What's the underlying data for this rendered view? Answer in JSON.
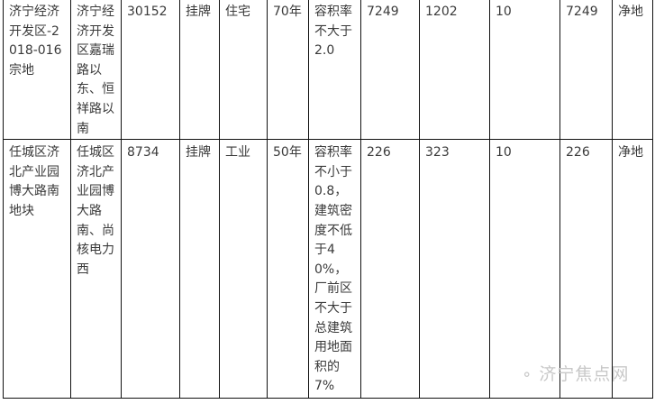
{
  "rows": [
    {
      "cells": [
        "济宁经济开发区-2018-016宗地",
        "济宁经济开发区嘉瑞路以东、恒祥路以南",
        "30152",
        "挂牌",
        "住宅",
        "70年",
        "容积率不大于2.0",
        "7249",
        "1202",
        "10",
        "7249",
        "净地"
      ]
    },
    {
      "cells": [
        "任城区济北产业园博大路南地块",
        "任城区济北产业园博大路南、尚核电力西",
        "8734",
        "挂牌",
        "工业",
        "50年",
        "容积率不小于0.8，建筑密度不低于40%，厂前区不大于总建筑用地面积的7%",
        "226",
        "323",
        "10",
        "226",
        "净地"
      ]
    }
  ],
  "watermark": {
    "text": "济宁焦点网",
    "icon": "wechat-icon"
  }
}
